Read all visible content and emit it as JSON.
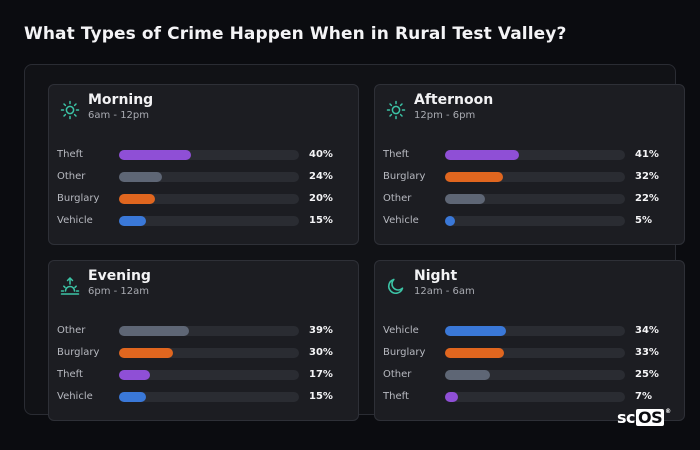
{
  "title": "What Types of Crime Happen When in Rural Test Valley?",
  "colors": {
    "Theft": "#8f4fd6",
    "Other": "#5e6675",
    "Burglary": "#e0661f",
    "Vehicle": "#3a78d8",
    "icon": "#3cc4a6"
  },
  "chart_data": [
    {
      "type": "bar",
      "title": "Morning",
      "subtitle": "6am - 12pm",
      "icon": "sun-icon",
      "categories": [
        "Theft",
        "Other",
        "Burglary",
        "Vehicle"
      ],
      "values": [
        40,
        24,
        20,
        15
      ],
      "labels": [
        "40%",
        "24%",
        "20%",
        "15%"
      ],
      "ylim": [
        0,
        100
      ]
    },
    {
      "type": "bar",
      "title": "Afternoon",
      "subtitle": "12pm - 6pm",
      "icon": "sun-icon",
      "categories": [
        "Theft",
        "Burglary",
        "Other",
        "Vehicle"
      ],
      "values": [
        41,
        32,
        22,
        5
      ],
      "labels": [
        "41%",
        "32%",
        "22%",
        "5%"
      ],
      "ylim": [
        0,
        100
      ]
    },
    {
      "type": "bar",
      "title": "Evening",
      "subtitle": "6pm - 12am",
      "icon": "sunset-icon",
      "categories": [
        "Other",
        "Burglary",
        "Theft",
        "Vehicle"
      ],
      "values": [
        39,
        30,
        17,
        15
      ],
      "labels": [
        "39%",
        "30%",
        "17%",
        "15%"
      ],
      "ylim": [
        0,
        100
      ]
    },
    {
      "type": "bar",
      "title": "Night",
      "subtitle": "12am - 6am",
      "icon": "moon-icon",
      "categories": [
        "Vehicle",
        "Burglary",
        "Other",
        "Theft"
      ],
      "values": [
        34,
        33,
        25,
        7
      ],
      "labels": [
        "34%",
        "33%",
        "25%",
        "7%"
      ],
      "ylim": [
        0,
        100
      ]
    }
  ],
  "logo": {
    "prefix": "sc",
    "box": "OS",
    "mark": "®"
  }
}
